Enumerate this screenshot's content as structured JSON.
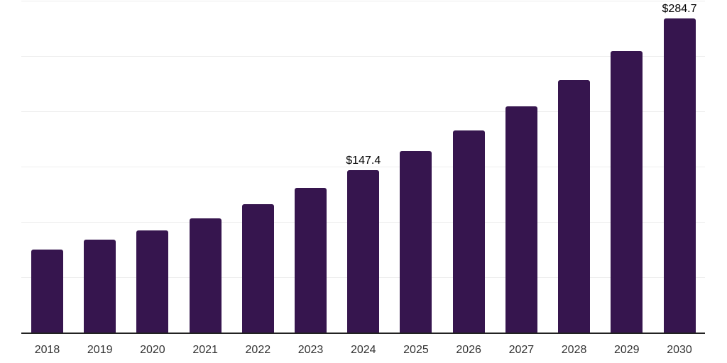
{
  "chart_data": {
    "type": "bar",
    "title": "",
    "xlabel": "",
    "ylabel": "",
    "categories": [
      "2018",
      "2019",
      "2020",
      "2021",
      "2022",
      "2023",
      "2024",
      "2025",
      "2026",
      "2027",
      "2028",
      "2029",
      "2030"
    ],
    "values": [
      75.6,
      84.6,
      92.9,
      103.8,
      116.6,
      131.4,
      147.4,
      164.5,
      183.6,
      204.9,
      228.6,
      255.1,
      284.7
    ],
    "data_labels": [
      {
        "category": "2024",
        "index": 6,
        "text": "$147.4"
      },
      {
        "category": "2030",
        "index": 12,
        "text": "$284.7"
      }
    ],
    "ylim": [
      0,
      300
    ],
    "gridline_interval": 50,
    "grid": true,
    "legend": false,
    "y_axis_labels_shown": false,
    "colors": {
      "bar": "#36154E",
      "gridline": "#EDEDED",
      "axis": "#222222",
      "tick_label": "#333333",
      "value_label": "#000000",
      "background": "#FFFFFF"
    }
  }
}
